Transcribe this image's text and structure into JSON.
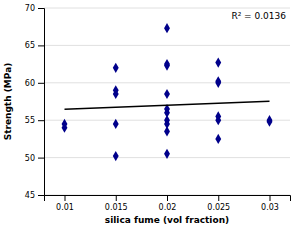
{
  "chart_data": {
    "type": "scatter",
    "xlabel": "silica fume (vol fraction)",
    "ylabel": "Strength (MPa)",
    "annotations": [
      {
        "text": "R² = 0.0136"
      }
    ],
    "xlim": [
      0.008,
      0.032
    ],
    "ylim": [
      45,
      70
    ],
    "xticks": [
      0.01,
      0.015,
      0.02,
      0.025,
      0.03
    ],
    "yticks": [
      45,
      50,
      55,
      60,
      65,
      70
    ],
    "grid": "y",
    "series": [
      {
        "type": "scatter",
        "marker": "diamond",
        "color": "#00008B",
        "x": [
          0.01,
          0.01,
          0.015,
          0.015,
          0.015,
          0.015,
          0.015,
          0.02,
          0.02,
          0.02,
          0.02,
          0.02,
          0.02,
          0.02,
          0.02,
          0.02,
          0.02,
          0.025,
          0.025,
          0.025,
          0.025,
          0.025,
          0.025,
          0.03,
          0.03
        ],
        "values": [
          54.5,
          54.0,
          62.0,
          59.0,
          58.5,
          54.5,
          50.2,
          67.3,
          62.5,
          62.3,
          58.5,
          56.5,
          56.0,
          55.0,
          54.5,
          53.5,
          50.5,
          62.7,
          60.2,
          60.0,
          55.5,
          55.0,
          52.5,
          55.0,
          54.8
        ]
      },
      {
        "type": "line",
        "color": "black",
        "x": [
          0.01,
          0.03
        ],
        "values": [
          56.447626113,
          57.530712166
        ]
      }
    ]
  }
}
